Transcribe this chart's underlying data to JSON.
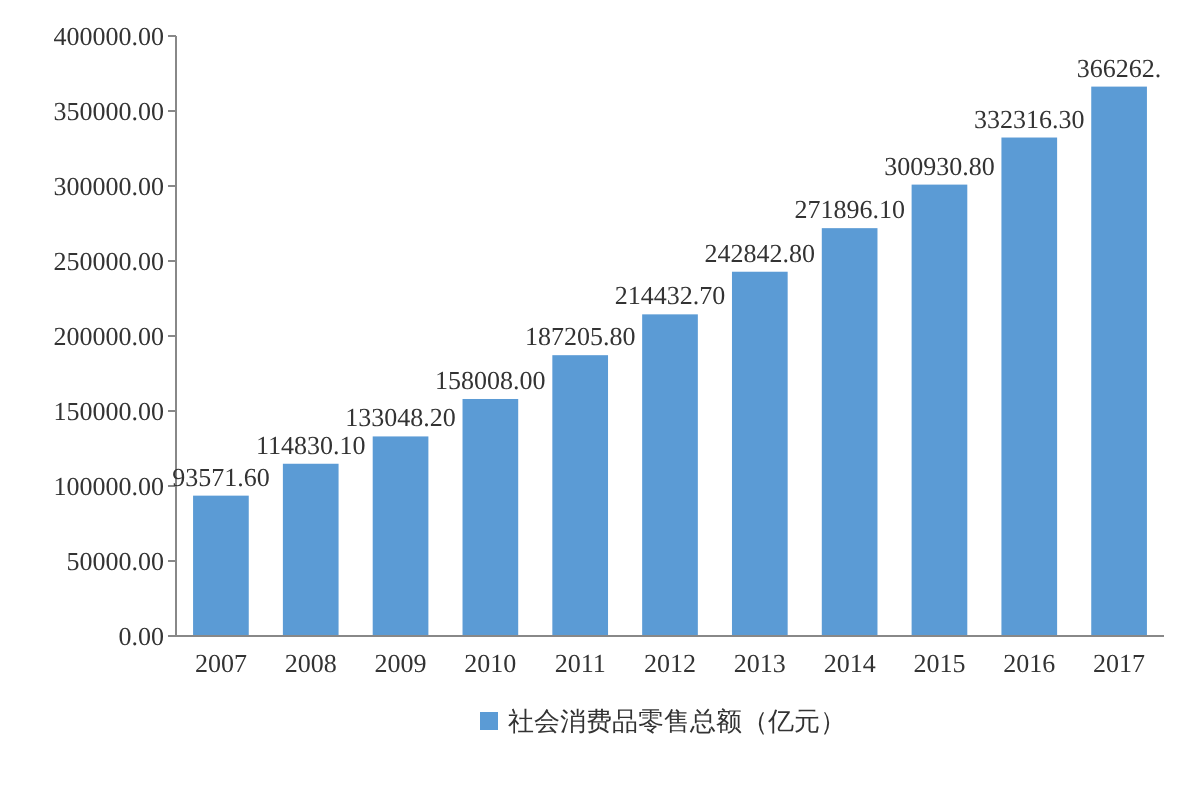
{
  "chart_data": {
    "type": "bar",
    "categories": [
      "2007",
      "2008",
      "2009",
      "2010",
      "2011",
      "2012",
      "2013",
      "2014",
      "2015",
      "2016",
      "2017"
    ],
    "series": [
      {
        "name": "社会消费品零售总额（亿元）",
        "color": "#5b9bd5",
        "values": [
          93571.6,
          114830.1,
          133048.2,
          158008.0,
          187205.8,
          214432.7,
          242842.8,
          271896.1,
          300930.8,
          332316.3,
          366262.0
        ]
      }
    ],
    "value_labels": [
      "93571.60",
      "114830.10",
      "133048.20",
      "158008.00",
      "187205.80",
      "214432.70",
      "242842.80",
      "271896.10",
      "300930.80",
      "332316.30",
      "366262."
    ],
    "ylim": [
      0,
      400000
    ],
    "yticks": [
      {
        "value": 0,
        "label": "0.00"
      },
      {
        "value": 50000,
        "label": "50000.00"
      },
      {
        "value": 100000,
        "label": "100000.00"
      },
      {
        "value": 150000,
        "label": "150000.00"
      },
      {
        "value": 200000,
        "label": "200000.00"
      },
      {
        "value": 250000,
        "label": "250000.00"
      },
      {
        "value": 300000,
        "label": "300000.00"
      },
      {
        "value": 350000,
        "label": "350000.00"
      },
      {
        "value": 400000,
        "label": "400000.00"
      }
    ],
    "grid": false,
    "legend": "bottom"
  }
}
